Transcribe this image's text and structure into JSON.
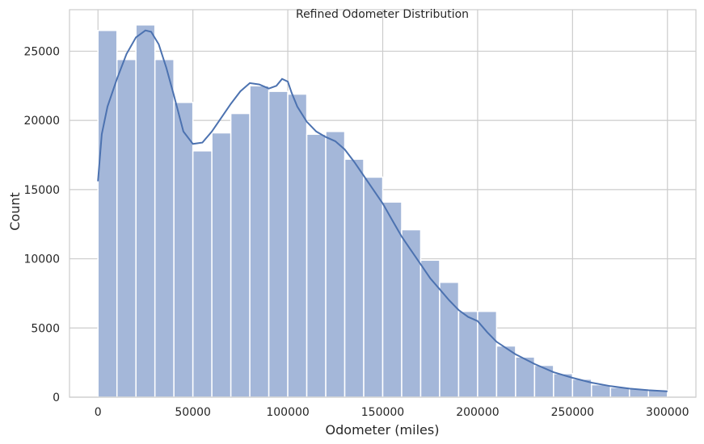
{
  "chart_data": {
    "type": "bar",
    "title": "Refined Odometer Distribution",
    "xlabel": "Odometer (miles)",
    "ylabel": "Count",
    "xlim": [
      -15000,
      315000
    ],
    "ylim": [
      0,
      28000
    ],
    "xticks": [
      0,
      50000,
      100000,
      150000,
      200000,
      250000,
      300000
    ],
    "yticks": [
      0,
      5000,
      10000,
      15000,
      20000,
      25000
    ],
    "grid": true,
    "bin_width": 10000,
    "bin_starts": [
      0,
      10000,
      20000,
      30000,
      40000,
      50000,
      60000,
      70000,
      80000,
      90000,
      100000,
      110000,
      120000,
      130000,
      140000,
      150000,
      160000,
      170000,
      180000,
      190000,
      200000,
      210000,
      220000,
      230000,
      240000,
      250000,
      260000,
      270000,
      280000,
      290000
    ],
    "values": [
      26500,
      24400,
      26900,
      24400,
      21300,
      17800,
      19100,
      20500,
      22500,
      22100,
      21900,
      19000,
      19200,
      17200,
      15900,
      14100,
      12100,
      9900,
      8300,
      6200,
      6200,
      3700,
      2900,
      2300,
      1700,
      1300,
      900,
      700,
      600,
      500
    ],
    "kde": {
      "x": [
        0,
        2000,
        5000,
        10000,
        15000,
        20000,
        25000,
        28000,
        32000,
        36000,
        40000,
        45000,
        50000,
        55000,
        60000,
        65000,
        70000,
        75000,
        80000,
        85000,
        90000,
        94000,
        97000,
        100000,
        102000,
        105000,
        110000,
        115000,
        120000,
        125000,
        130000,
        135000,
        140000,
        145000,
        150000,
        155000,
        160000,
        165000,
        170000,
        175000,
        180000,
        185000,
        190000,
        195000,
        200000,
        205000,
        210000,
        220000,
        230000,
        240000,
        250000,
        260000,
        270000,
        280000,
        290000,
        300000
      ],
      "y": [
        15600,
        19000,
        21000,
        23000,
        24800,
        26000,
        26500,
        26400,
        25500,
        23800,
        21800,
        19200,
        18300,
        18400,
        19200,
        20200,
        21200,
        22100,
        22700,
        22600,
        22300,
        22500,
        23000,
        22800,
        22000,
        21000,
        19900,
        19200,
        18800,
        18500,
        17900,
        17000,
        16000,
        15000,
        14000,
        12800,
        11600,
        10600,
        9600,
        8600,
        7800,
        7000,
        6300,
        5800,
        5500,
        4700,
        4000,
        3100,
        2400,
        1800,
        1400,
        1050,
        800,
        620,
        500,
        420
      ]
    }
  }
}
